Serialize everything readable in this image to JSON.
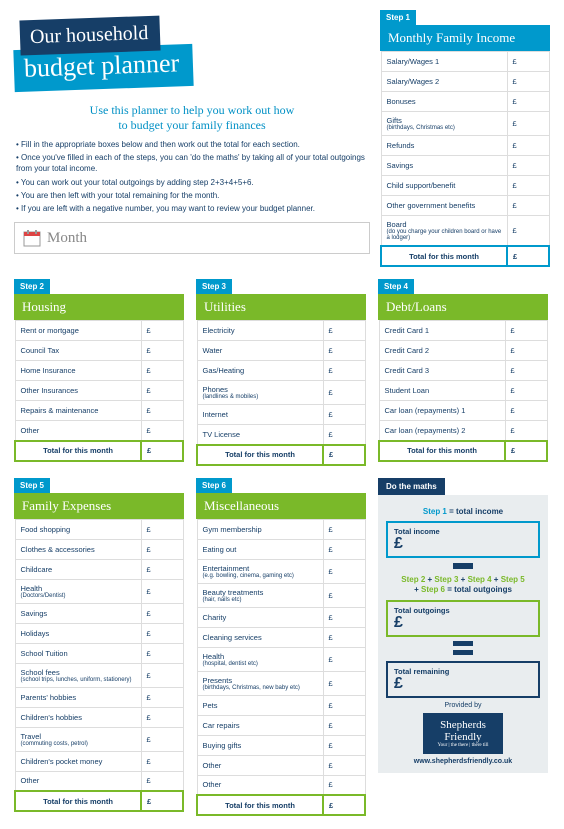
{
  "title": {
    "line1": "Our household",
    "line2": "budget planner"
  },
  "intro": "Use this planner to help you work out how\nto budget your family finances",
  "bullets": [
    "Fill in the appropriate boxes below and then work out the total for each section.",
    "Once you've filled in each of the steps, you can 'do the maths' by taking all of your total outgoings from your total income.",
    "You can work out your total outgoings by adding step 2+3+4+5+6.",
    "You are then left with your total remaining for the month.",
    "If you are left with a negative number, you may want to review your budget planner."
  ],
  "month_placeholder": "Month",
  "currency": "£",
  "total_label": "Total for this month",
  "colors": {
    "step1": "#0099cc",
    "step2": "#7ab929",
    "step3": "#7ab929",
    "step4": "#7ab929",
    "step5": "#7ab929",
    "step6": "#7ab929",
    "step2_accent": "#7ab929",
    "navy": "#163e67",
    "orange": "#e88a2a"
  },
  "step1": {
    "tab": "Step 1",
    "title": "Monthly Family Income",
    "rows": [
      {
        "label": "Salary/Wages 1"
      },
      {
        "label": "Salary/Wages 2"
      },
      {
        "label": "Bonuses"
      },
      {
        "label": "Gifts",
        "sub": "(birthdays, Christmas etc)"
      },
      {
        "label": "Refunds"
      },
      {
        "label": "Savings"
      },
      {
        "label": "Child support/benefit"
      },
      {
        "label": "Other government benefits"
      },
      {
        "label": "Board",
        "sub": "(do you charge your children board or have a lodger)"
      }
    ]
  },
  "step2": {
    "tab": "Step 2",
    "title": "Housing",
    "rows": [
      {
        "label": "Rent or mortgage"
      },
      {
        "label": "Council Tax"
      },
      {
        "label": "Home Insurance"
      },
      {
        "label": "Other Insurances"
      },
      {
        "label": "Repairs & maintenance"
      },
      {
        "label": "Other"
      }
    ]
  },
  "step3": {
    "tab": "Step 3",
    "title": "Utilities",
    "rows": [
      {
        "label": "Electricity"
      },
      {
        "label": "Water"
      },
      {
        "label": "Gas/Heating"
      },
      {
        "label": "Phones",
        "sub": "(landlines & mobiles)"
      },
      {
        "label": "Internet"
      },
      {
        "label": "TV License"
      }
    ]
  },
  "step4": {
    "tab": "Step 4",
    "title": "Debt/Loans",
    "rows": [
      {
        "label": "Credit Card 1"
      },
      {
        "label": "Credit Card 2"
      },
      {
        "label": "Credit Card 3"
      },
      {
        "label": "Student Loan"
      },
      {
        "label": "Car loan (repayments) 1"
      },
      {
        "label": "Car loan (repayments) 2"
      }
    ]
  },
  "step5": {
    "tab": "Step 5",
    "title": "Family Expenses",
    "rows": [
      {
        "label": "Food shopping"
      },
      {
        "label": "Clothes & accessories"
      },
      {
        "label": "Childcare"
      },
      {
        "label": "Health",
        "sub": "(Doctors/Dentist)"
      },
      {
        "label": "Savings"
      },
      {
        "label": "Holidays"
      },
      {
        "label": "School Tuition"
      },
      {
        "label": "School fees",
        "sub": "(school trips, lunches, uniform, stationery)"
      },
      {
        "label": "Parents' hobbies"
      },
      {
        "label": "Children's hobbies"
      },
      {
        "label": "Travel",
        "sub": "(commuting costs, petrol)"
      },
      {
        "label": "Children's pocket money"
      },
      {
        "label": "Other"
      }
    ]
  },
  "step6": {
    "tab": "Step 6",
    "title": "Miscellaneous",
    "rows": [
      {
        "label": "Gym membership"
      },
      {
        "label": "Eating out"
      },
      {
        "label": "Entertainment",
        "sub": "(e.g. bowling, cinema, gaming etc)"
      },
      {
        "label": "Beauty treatments",
        "sub": "(hair, nails etc)"
      },
      {
        "label": "Charity"
      },
      {
        "label": "Cleaning services"
      },
      {
        "label": "Health",
        "sub": "(hospital, dentist etc)"
      },
      {
        "label": "Presents",
        "sub": "(birthdays, Christmas, new baby etc)"
      },
      {
        "label": "Pets"
      },
      {
        "label": "Car repairs"
      },
      {
        "label": "Buying gifts"
      },
      {
        "label": "Other"
      },
      {
        "label": "Other"
      }
    ]
  },
  "maths": {
    "tab": "Do the maths",
    "line1_parts": [
      "Step 1",
      " = total income"
    ],
    "box1": "Total income",
    "line2_parts": [
      "Step 2",
      " + ",
      "Step 3",
      " + ",
      "Step 4",
      " + ",
      "Step 5",
      " + ",
      "Step 6",
      " = total outgoings"
    ],
    "box2": "Total outgoings",
    "box3": "Total remaining",
    "provided": "Provided by",
    "brand": "Shepherds Friendly",
    "brand_sub": "Your | the there | there till",
    "site": "www.shepherdsfriendly.co.uk"
  }
}
